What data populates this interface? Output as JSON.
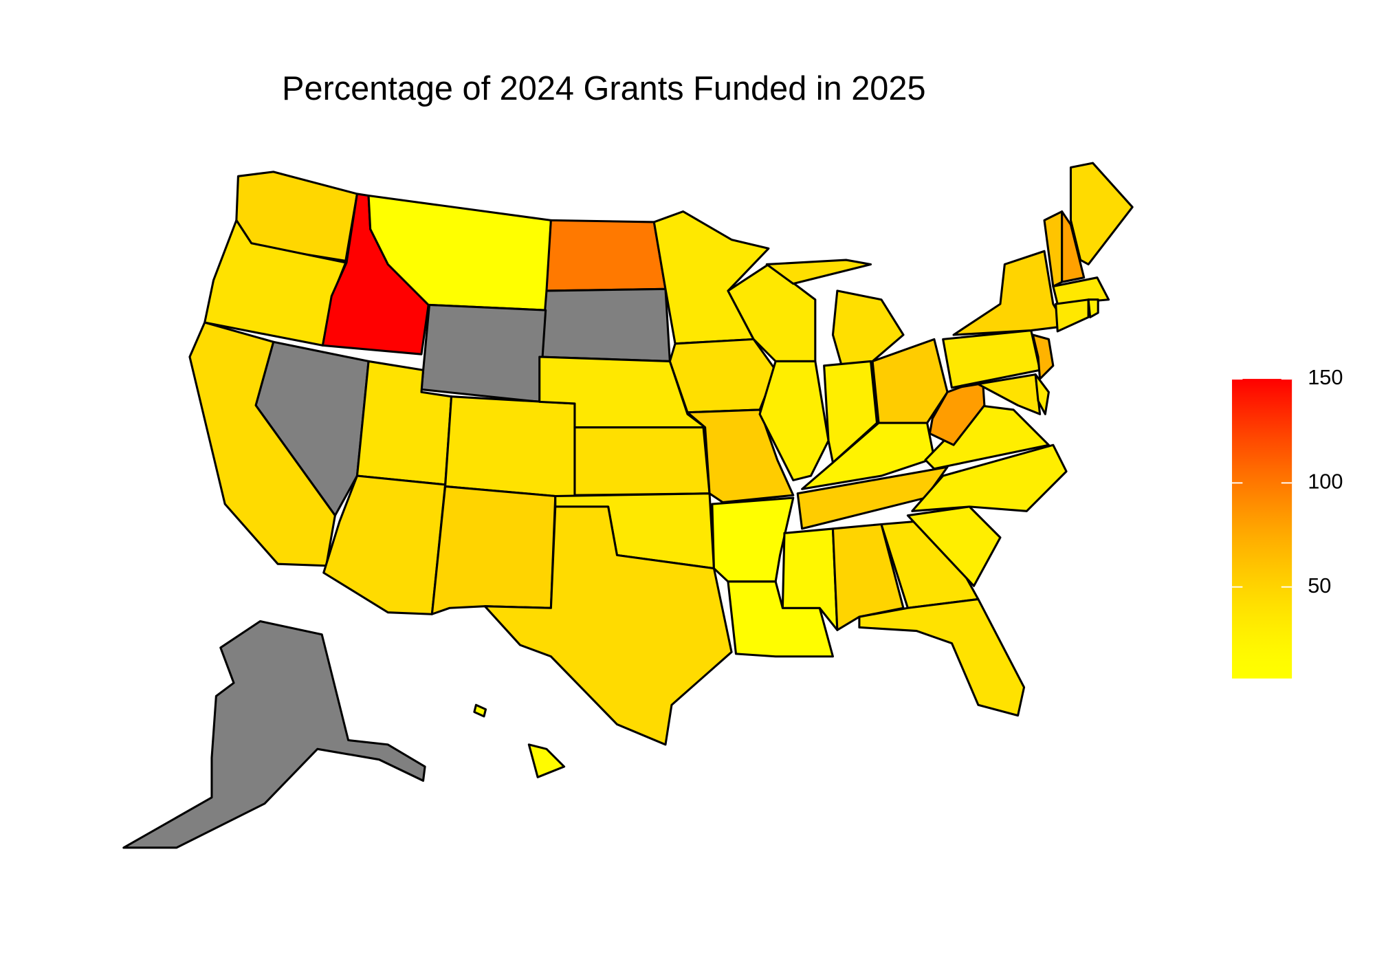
{
  "chart_data": {
    "type": "choropleth",
    "title": "Percentage of 2024 Grants Funded in 2025",
    "values": [
      48,
      40,
      150,
      6,
      100,
      null,
      null,
      null,
      45,
      40,
      40,
      45,
      50,
      35,
      42,
      35,
      45,
      35,
      42,
      55,
      10,
      12,
      35,
      30,
      42,
      42,
      30,
      55,
      25,
      55,
      20,
      50,
      40,
      40,
      30,
      30,
      30,
      82,
      35,
      50,
      70,
      40,
      35,
      60,
      80,
      45,
      35,
      35,
      30,
      null,
      15,
      15
    ],
    "clim": [
      6,
      150
    ],
    "legend_ticks": [
      50,
      100,
      150
    ],
    "low_color": "#FFFF00",
    "high_color": "#FF0000",
    "na_color": "#808080",
    "legend": "right"
  }
}
